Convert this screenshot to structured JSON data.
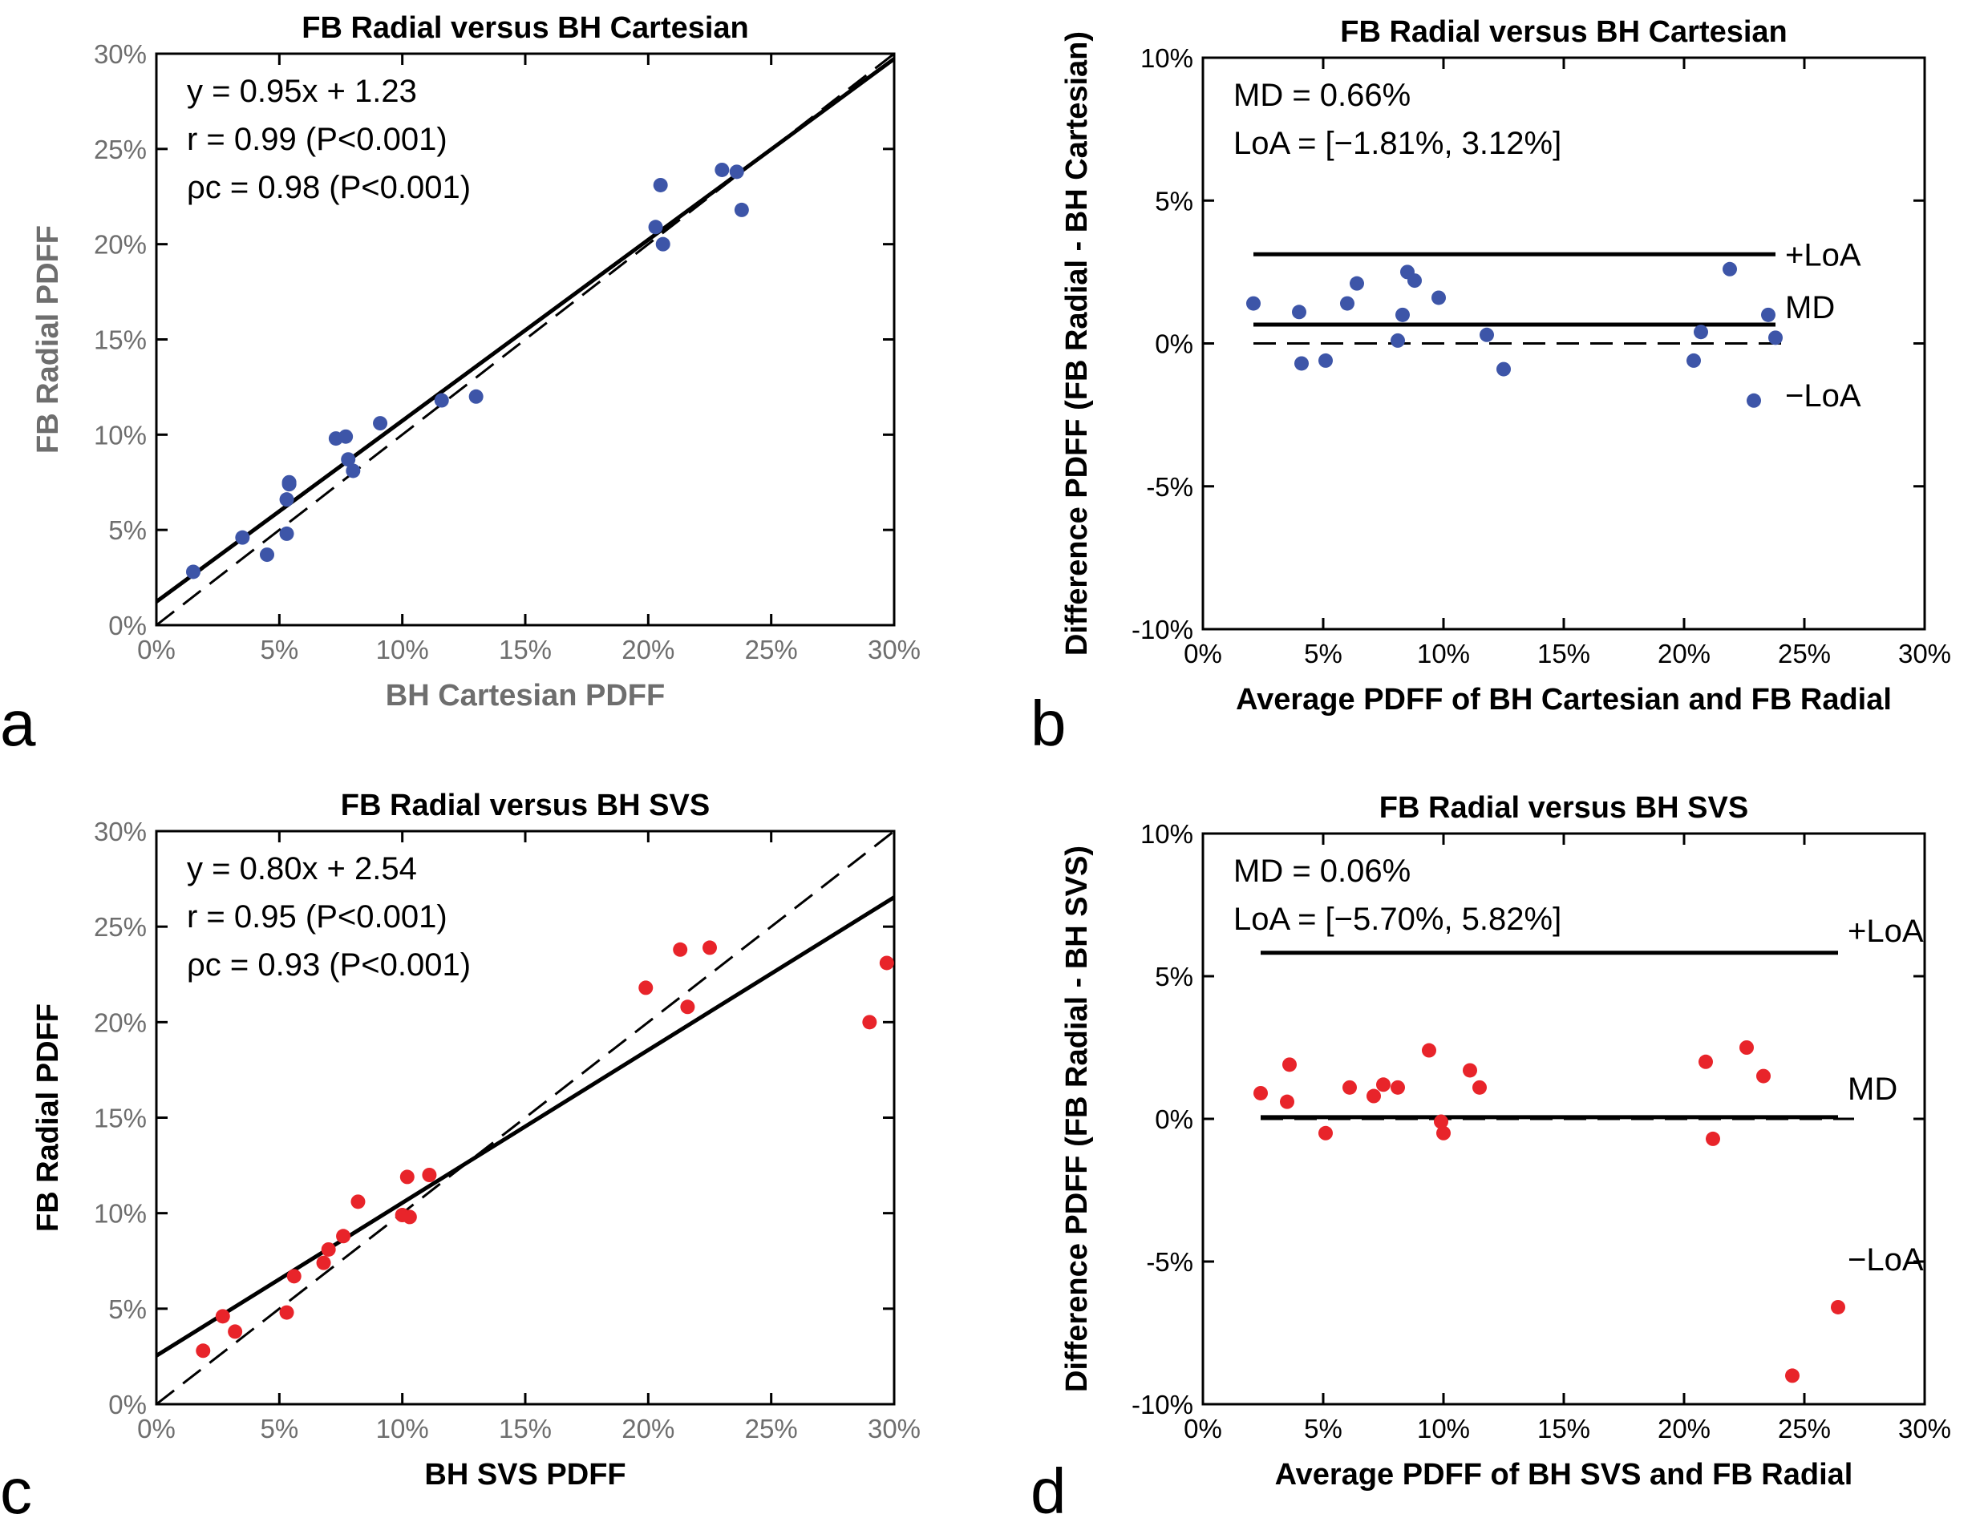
{
  "chart_data": [
    {
      "panel": "a",
      "type": "scatter",
      "title": "FB Radial versus BH Cartesian",
      "xlabel": "BH Cartesian PDFF",
      "ylabel": "FB Radial PDFF",
      "xlim": [
        0,
        30
      ],
      "ylim": [
        0,
        30
      ],
      "xticks": [
        "0%",
        "5%",
        "10%",
        "15%",
        "20%",
        "25%",
        "30%"
      ],
      "yticks": [
        "0%",
        "5%",
        "10%",
        "15%",
        "20%",
        "25%",
        "30%"
      ],
      "marker_color": "#3d55a8",
      "stats": [
        "y = 0.95x + 1.23",
        "r = 0.99 (P<0.001)",
        "ρc = 0.98 (P<0.001)"
      ],
      "fit": {
        "slope": 0.95,
        "intercept": 1.23
      },
      "identity_line": true,
      "x": [
        1.5,
        3.5,
        4.5,
        5.3,
        5.4,
        5.3,
        5.4,
        7.3,
        7.7,
        7.8,
        8.0,
        9.1,
        11.6,
        13.0,
        20.3,
        20.5,
        20.6,
        23.0,
        23.6,
        23.8
      ],
      "y": [
        2.8,
        4.6,
        3.7,
        6.6,
        7.4,
        4.8,
        7.5,
        9.8,
        9.9,
        8.7,
        8.1,
        10.6,
        11.8,
        12.0,
        20.9,
        23.1,
        20.0,
        23.9,
        23.8,
        21.8
      ]
    },
    {
      "panel": "b",
      "type": "scatter",
      "title": "FB Radial versus BH Cartesian",
      "xlabel": "Average PDFF of BH Cartesian and FB Radial",
      "ylabel": "Difference PDFF (FB Radial - BH Cartesian)",
      "xlim": [
        0,
        30
      ],
      "ylim": [
        -10,
        10
      ],
      "xticks": [
        "0%",
        "5%",
        "10%",
        "15%",
        "20%",
        "25%",
        "30%"
      ],
      "yticks": [
        "-10%",
        "-5%",
        "0%",
        "5%",
        "10%"
      ],
      "marker_color": "#3d55a8",
      "stats": [
        "MD = 0.66%",
        "LoA = [−1.81%, 3.12%]"
      ],
      "md": 0.66,
      "loa": [
        -1.81,
        3.12
      ],
      "line_labels": {
        "upper": "+LoA",
        "mean": "MD",
        "lower": "−LoA"
      },
      "x": [
        2.1,
        4.0,
        4.1,
        5.1,
        6.0,
        6.4,
        8.1,
        8.3,
        8.5,
        8.8,
        9.8,
        11.8,
        12.5,
        20.4,
        20.7,
        21.9,
        22.9,
        23.5,
        23.8
      ],
      "y": [
        1.4,
        1.1,
        -0.7,
        -0.6,
        1.4,
        2.1,
        0.1,
        1.0,
        2.5,
        2.2,
        1.6,
        0.3,
        -0.9,
        -0.6,
        0.4,
        2.6,
        -2.0,
        1.0,
        0.2
      ]
    },
    {
      "panel": "c",
      "type": "scatter",
      "title": "FB Radial versus BH SVS",
      "xlabel": "BH SVS PDFF",
      "ylabel": "FB Radial PDFF",
      "xlim": [
        0,
        30
      ],
      "ylim": [
        0,
        30
      ],
      "xticks": [
        "0%",
        "5%",
        "10%",
        "15%",
        "20%",
        "25%",
        "30%"
      ],
      "yticks": [
        "0%",
        "5%",
        "10%",
        "15%",
        "20%",
        "25%",
        "30%"
      ],
      "marker_color": "#e8242a",
      "stats": [
        "y = 0.80x + 2.54",
        "r = 0.95 (P<0.001)",
        "ρc = 0.93 (P<0.001)"
      ],
      "fit": {
        "slope": 0.8,
        "intercept": 2.54
      },
      "identity_line": true,
      "x": [
        1.9,
        2.7,
        3.2,
        5.3,
        5.6,
        6.8,
        7.0,
        7.6,
        8.2,
        10.0,
        10.2,
        10.3,
        11.1,
        19.9,
        21.3,
        21.6,
        22.5,
        29.0,
        29.7
      ],
      "y": [
        2.8,
        4.6,
        3.8,
        4.8,
        6.7,
        7.4,
        8.1,
        8.8,
        10.6,
        9.9,
        11.9,
        9.8,
        12.0,
        21.8,
        23.8,
        20.8,
        23.9,
        20.0,
        23.1
      ]
    },
    {
      "panel": "d",
      "type": "scatter",
      "title": "FB Radial versus BH SVS",
      "xlabel": "Average PDFF of BH SVS and FB Radial",
      "ylabel": "Difference PDFF (FB Radial - BH SVS)",
      "xlim": [
        0,
        30
      ],
      "ylim": [
        -10,
        10
      ],
      "xticks": [
        "0%",
        "5%",
        "10%",
        "15%",
        "20%",
        "25%",
        "30%"
      ],
      "yticks": [
        "-10%",
        "-5%",
        "0%",
        "5%",
        "10%"
      ],
      "marker_color": "#e8242a",
      "stats": [
        "MD = 0.06%",
        "LoA = [−5.70%, 5.82%]"
      ],
      "md": 0.06,
      "loa": [
        -5.7,
        5.82
      ],
      "line_labels": {
        "upper": "+LoA",
        "mean": "MD",
        "lower": "−LoA"
      },
      "x": [
        2.4,
        3.5,
        3.6,
        5.1,
        6.1,
        7.1,
        7.5,
        8.1,
        9.4,
        9.9,
        10.0,
        11.1,
        11.5,
        20.9,
        21.2,
        22.6,
        23.3,
        24.5,
        26.4
      ],
      "y": [
        0.9,
        0.6,
        1.9,
        -0.5,
        1.1,
        0.8,
        1.2,
        1.1,
        2.4,
        -0.1,
        -0.5,
        1.7,
        1.1,
        2.0,
        -0.7,
        2.5,
        1.5,
        -9.0,
        -6.6
      ]
    }
  ],
  "panel_letters": [
    "a",
    "b",
    "c",
    "d"
  ],
  "colors": {
    "blue": "#3d55a8",
    "red": "#e8242a",
    "axis_gray": "#6e6e6e"
  }
}
